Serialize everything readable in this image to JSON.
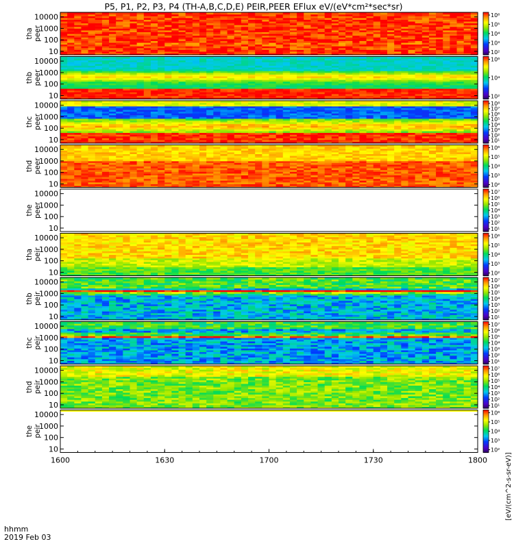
{
  "chart_data": {
    "type": "heatmap",
    "title": "P5, P1, P2, P3, P4 (TH-A,B,C,D,E) PEIR,PEER EFlux eV/(eV*cm²*sec*sr)",
    "time_axis": {
      "tick_labels": [
        "1600",
        "1630",
        "1700",
        "1730",
        "1800"
      ],
      "label_line1": "hhmm",
      "label_line2": "2019 Feb 03"
    },
    "y_tick_labels": [
      "10",
      "100",
      "1000",
      "10000"
    ],
    "colorbar_unit_label": "[eV/(cm^2-s-sr-eV)]",
    "colorbar_ticks": {
      "7": [
        "10⁷",
        "10⁶",
        "10⁵",
        "10⁴",
        "10³",
        "10²",
        "10¹"
      ],
      "6": [
        "10⁶",
        "10⁵",
        "10⁴",
        "10³",
        "10²"
      ],
      "5": [
        "10⁶",
        "10⁴",
        "10²"
      ],
      "8": [
        "10⁸",
        "10⁷",
        "10⁶",
        "10⁵",
        "10⁴",
        "10³",
        "10²",
        "10¹"
      ]
    },
    "panels": [
      {
        "probe": "tha",
        "species": "peer",
        "profile": "peer_a",
        "stripe": "none",
        "cbar": "6"
      },
      {
        "probe": "thb",
        "species": "peer",
        "profile": "peer_b",
        "stripe": "none",
        "cbar": "5"
      },
      {
        "probe": "thc",
        "species": "peer",
        "profile": "peer_c",
        "stripe": "none",
        "cbar": "8"
      },
      {
        "probe": "thd",
        "species": "peer",
        "profile": "peer_d",
        "stripe": "none",
        "cbar": "6"
      },
      {
        "probe": "the",
        "species": "peer",
        "profile": "empty",
        "stripe": "red",
        "cbar": "7"
      },
      {
        "probe": "tha",
        "species": "peir",
        "profile": "peir_a",
        "stripe": "yellow",
        "cbar": "6"
      },
      {
        "probe": "thb",
        "species": "peir",
        "profile": "peir_b",
        "stripe": "none",
        "cbar": "7"
      },
      {
        "probe": "thc",
        "species": "peir",
        "profile": "peir_c",
        "stripe": "red",
        "cbar": "7"
      },
      {
        "probe": "thd",
        "species": "peir",
        "profile": "peir_d",
        "stripe": "yellow",
        "cbar": "7"
      },
      {
        "probe": "the",
        "species": "peir",
        "profile": "empty",
        "stripe": "none",
        "cbar": "6"
      }
    ],
    "colorscale": "rainbow (purple-blue-cyan-green-yellow-red)",
    "y_scale": "log",
    "grid": false
  }
}
